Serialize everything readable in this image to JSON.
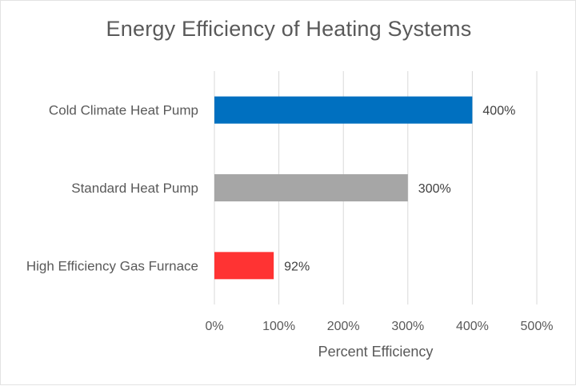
{
  "chart_data": {
    "type": "bar",
    "orientation": "horizontal",
    "title": "Energy Efficiency of Heating Systems",
    "xlabel": "Percent Efficiency",
    "ylabel": "",
    "categories": [
      "Cold Climate Heat Pump",
      "Standard Heat Pump",
      "High Efficiency Gas Furnace"
    ],
    "values": [
      400,
      300,
      92
    ],
    "data_labels": [
      "400%",
      "300%",
      "92%"
    ],
    "bar_colors": [
      "#0070c0",
      "#a6a6a6",
      "#ff3333"
    ],
    "xlim": [
      0,
      500
    ],
    "x_ticks": [
      0,
      100,
      200,
      300,
      400,
      500
    ],
    "x_tick_labels": [
      "0%",
      "100%",
      "200%",
      "300%",
      "400%",
      "500%"
    ],
    "grid": true,
    "legend": "none"
  }
}
